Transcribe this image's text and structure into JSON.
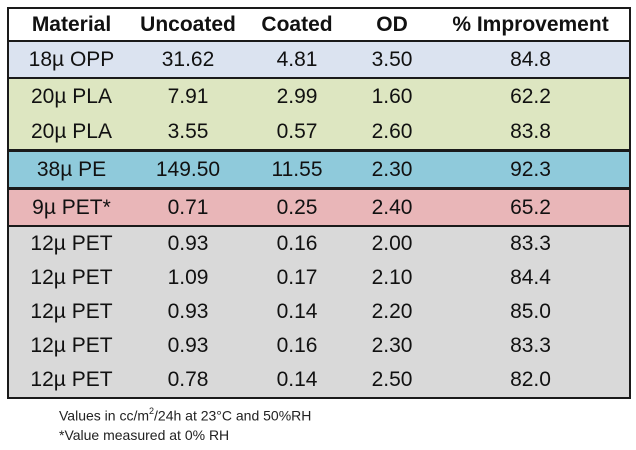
{
  "palette": {
    "row_opp": "#dbe3f0",
    "row_pla": "#dde6c1",
    "row_pe": "#8fcadb",
    "row_pet9": "#e9b6b8",
    "row_pet12": "#d9d9d9",
    "border": "#1a1a1a",
    "background": "#ffffff",
    "text": "#111111"
  },
  "chart_data": {
    "type": "table",
    "columns": [
      "Material",
      "Uncoated",
      "Coated",
      "OD",
      "% Improvement"
    ],
    "rows": [
      [
        "18µ OPP",
        "31.62",
        "4.81",
        "3.50",
        "84.8"
      ],
      [
        "20µ PLA",
        "7.91",
        "2.99",
        "1.60",
        "62.2"
      ],
      [
        "20µ PLA",
        "3.55",
        "0.57",
        "2.60",
        "83.8"
      ],
      [
        "38µ PE",
        "149.50",
        "11.55",
        "2.30",
        "92.3"
      ],
      [
        "9µ PET*",
        "0.71",
        "0.25",
        "2.40",
        "65.2"
      ],
      [
        "12µ PET",
        "0.93",
        "0.16",
        "2.00",
        "83.3"
      ],
      [
        "12µ PET",
        "1.09",
        "0.17",
        "2.10",
        "84.4"
      ],
      [
        "12µ PET",
        "0.93",
        "0.14",
        "2.20",
        "85.0"
      ],
      [
        "12µ PET",
        "0.93",
        "0.16",
        "2.30",
        "83.3"
      ],
      [
        "12µ PET",
        "0.78",
        "0.14",
        "2.50",
        "82.0"
      ]
    ],
    "row_highlight_colors": [
      "#dbe3f0",
      "#dde6c1",
      "#dde6c1",
      "#8fcadb",
      "#e9b6b8",
      "#d9d9d9",
      "#d9d9d9",
      "#d9d9d9",
      "#d9d9d9",
      "#d9d9d9"
    ],
    "footnotes": [
      "Values in cc/m²/24h at 23°C and 50%RH",
      "*Value measured at 0% RH"
    ]
  },
  "footnote_parts": {
    "line1_prefix": "Values in cc/m",
    "line1_sup": "2",
    "line1_suffix": "/24h at 23°C and 50%RH",
    "line2": "*Value measured at 0% RH"
  }
}
